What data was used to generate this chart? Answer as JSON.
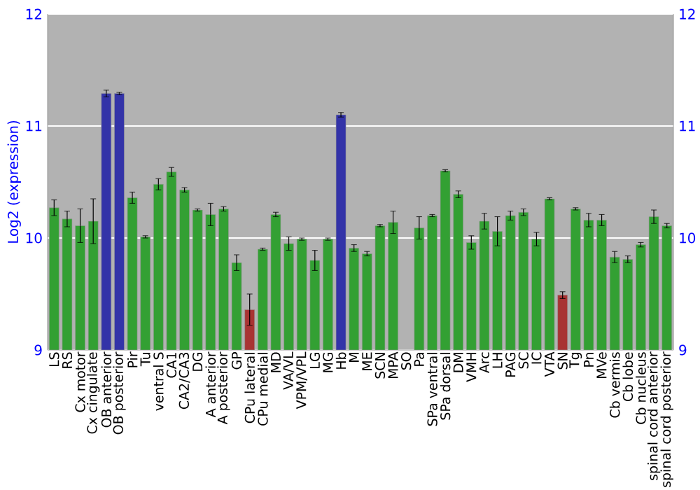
{
  "chart_data": {
    "type": "bar",
    "ylabel": "Log2 (expression)",
    "categories": [
      "LS",
      "RS",
      "Cx motor",
      "Cx cingulate",
      "OB anterior",
      "OB posterior",
      "Pir",
      "Tu",
      "ventral S",
      "CA1",
      "CA2/CA3",
      "DG",
      "A anterior",
      "A posterior",
      "GP",
      "CPu lateral",
      "CPu medial",
      "MD",
      "VA/VL",
      "VPM/VPL",
      "LG",
      "MG",
      "Hb",
      "M",
      "ME",
      "SCN",
      "MPA",
      "SO",
      "Pa",
      "SPa ventral",
      "SPa dorsal",
      "DM",
      "VMH",
      "Arc",
      "LH",
      "PAG",
      "SC",
      "IC",
      "VTA",
      "SN",
      "Tg",
      "Pn",
      "MVe",
      "Cb vermis",
      "Cb lobe",
      "Cb nucleus",
      "spinal cord anterior",
      "spinal cord posterior"
    ],
    "values": [
      10.27,
      10.17,
      10.11,
      10.15,
      11.29,
      11.29,
      10.36,
      10.01,
      10.48,
      10.59,
      10.43,
      10.25,
      10.21,
      10.26,
      9.78,
      9.36,
      9.9,
      10.21,
      9.95,
      9.99,
      9.8,
      9.99,
      11.1,
      9.91,
      9.86,
      10.11,
      10.14,
      null,
      10.09,
      10.2,
      10.6,
      10.39,
      9.96,
      10.15,
      10.06,
      10.2,
      10.23,
      9.99,
      10.35,
      9.49,
      10.26,
      10.16,
      10.16,
      9.83,
      9.81,
      9.94,
      10.19,
      10.11
    ],
    "errors": [
      0.07,
      0.07,
      0.15,
      0.2,
      0.03,
      0.01,
      0.05,
      0.01,
      0.05,
      0.04,
      0.02,
      0.01,
      0.1,
      0.02,
      0.07,
      0.14,
      0.01,
      0.02,
      0.06,
      0.01,
      0.09,
      0.01,
      0.02,
      0.03,
      0.02,
      0.01,
      0.1,
      null,
      0.1,
      0.01,
      0.01,
      0.03,
      0.06,
      0.07,
      0.13,
      0.04,
      0.03,
      0.06,
      0.01,
      0.03,
      0.01,
      0.06,
      0.05,
      0.05,
      0.03,
      0.02,
      0.06,
      0.02
    ],
    "colors": [
      "#33a033",
      "#33a033",
      "#33a033",
      "#33a033",
      "#3333a8",
      "#3333a8",
      "#33a033",
      "#33a033",
      "#33a033",
      "#33a033",
      "#33a033",
      "#33a033",
      "#33a033",
      "#33a033",
      "#33a033",
      "#a83333",
      "#33a033",
      "#33a033",
      "#33a033",
      "#33a033",
      "#33a033",
      "#33a033",
      "#3333a8",
      "#33a033",
      "#33a033",
      "#33a033",
      "#33a033",
      "#888888",
      "#33a033",
      "#33a033",
      "#33a033",
      "#33a033",
      "#33a033",
      "#33a033",
      "#33a033",
      "#33a033",
      "#33a033",
      "#33a033",
      "#33a033",
      "#a83333",
      "#33a033",
      "#33a033",
      "#33a033",
      "#33a033",
      "#33a033",
      "#33a033",
      "#33a033",
      "#33a033"
    ],
    "ylim": [
      9,
      12
    ],
    "yticks": [
      9,
      10,
      11,
      12
    ],
    "y2lim": [
      9,
      12
    ],
    "y2ticks": [
      9,
      10,
      11,
      12
    ],
    "grid": "y"
  }
}
